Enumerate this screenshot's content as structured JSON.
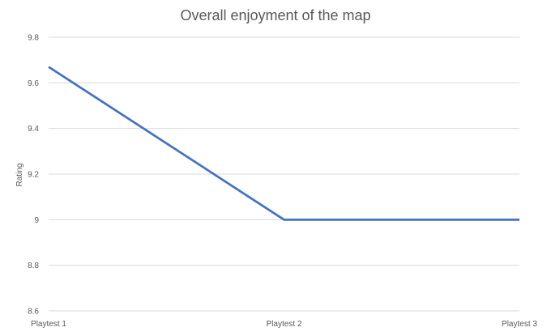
{
  "chart_data": {
    "type": "line",
    "title": "Overall enjoyment of the map",
    "xlabel": "",
    "ylabel": "Rating",
    "categories": [
      "Playtest 1",
      "Playtest 2",
      "Playtest 3"
    ],
    "series": [
      {
        "values": [
          9.67,
          9.0,
          9.0
        ],
        "color": "#4472c4"
      }
    ],
    "ylim": [
      8.6,
      9.8
    ],
    "yticks": [
      8.6,
      8.8,
      9.0,
      9.2,
      9.4,
      9.6,
      9.8
    ],
    "ytick_labels": [
      "8.6",
      "8.8",
      "9",
      "9.2",
      "9.4",
      "9.6",
      "9.8"
    ],
    "grid": true,
    "legend": "none"
  }
}
